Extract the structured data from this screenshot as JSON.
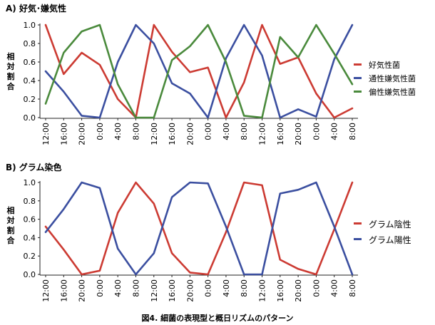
{
  "chart_data": [
    {
      "type": "line",
      "title": "A) 好気･嫌気性",
      "ylabel": "相対割合",
      "ylim": [
        0,
        1.0
      ],
      "yticks": [
        "0.0",
        "0.2",
        "0.4",
        "0.6",
        "0.8",
        "1.0"
      ],
      "categories": [
        "12:00",
        "16:00",
        "20:00",
        "0:00",
        "4:00",
        "8:00",
        "12:00",
        "16:00",
        "20:00",
        "0:00",
        "4:00",
        "8:00",
        "12:00",
        "16:00",
        "20:00",
        "0:00",
        "4:00",
        "8:00"
      ],
      "legend_position": "right",
      "series": [
        {
          "name": "好気性菌",
          "color": "#cc3b33",
          "values": [
            1.0,
            0.47,
            0.7,
            0.57,
            0.2,
            0.0,
            1.0,
            0.71,
            0.49,
            0.54,
            0.0,
            0.38,
            1.0,
            0.58,
            0.65,
            0.26,
            0.0,
            0.1
          ]
        },
        {
          "name": "通性嫌気性菌",
          "color": "#3b4fa0",
          "values": [
            0.5,
            0.28,
            0.02,
            0.0,
            0.6,
            1.0,
            0.8,
            0.37,
            0.26,
            0.0,
            0.64,
            1.0,
            0.67,
            0.0,
            0.09,
            0.01,
            0.63,
            1.0
          ]
        },
        {
          "name": "偏性嫌気性菌",
          "color": "#4a8a3c",
          "values": [
            0.15,
            0.7,
            0.93,
            1.0,
            0.36,
            0.0,
            0.0,
            0.62,
            0.77,
            1.0,
            0.6,
            0.02,
            0.0,
            0.87,
            0.65,
            1.0,
            0.69,
            0.36
          ]
        }
      ]
    },
    {
      "type": "line",
      "title": "B) グラム染色",
      "ylabel": "相対割合",
      "ylim": [
        0,
        1.0
      ],
      "yticks": [
        "0.0",
        "0.2",
        "0.4",
        "0.6",
        "0.8",
        "1.0"
      ],
      "categories": [
        "12:00",
        "16:00",
        "20:00",
        "0:00",
        "4:00",
        "8:00",
        "12:00",
        "16:00",
        "20:00",
        "0:00",
        "4:00",
        "8:00",
        "12:00",
        "16:00",
        "20:00",
        "0:00",
        "4:00",
        "8:00"
      ],
      "legend_position": "right",
      "series": [
        {
          "name": "グラム陰性",
          "color": "#cc3b33",
          "values": [
            0.52,
            0.27,
            0.0,
            0.04,
            0.67,
            1.0,
            0.77,
            0.23,
            0.02,
            0.0,
            0.46,
            1.0,
            0.97,
            0.16,
            0.06,
            0.0,
            0.49,
            1.0
          ]
        },
        {
          "name": "グラム陽性",
          "color": "#3b4fa0",
          "values": [
            0.46,
            0.71,
            1.0,
            0.94,
            0.28,
            0.0,
            0.23,
            0.84,
            1.0,
            0.99,
            0.52,
            0.0,
            0.0,
            0.88,
            0.92,
            1.0,
            0.52,
            0.0
          ]
        }
      ]
    }
  ],
  "caption": "図4. 細菌の表現型と概日リズムのパターン"
}
